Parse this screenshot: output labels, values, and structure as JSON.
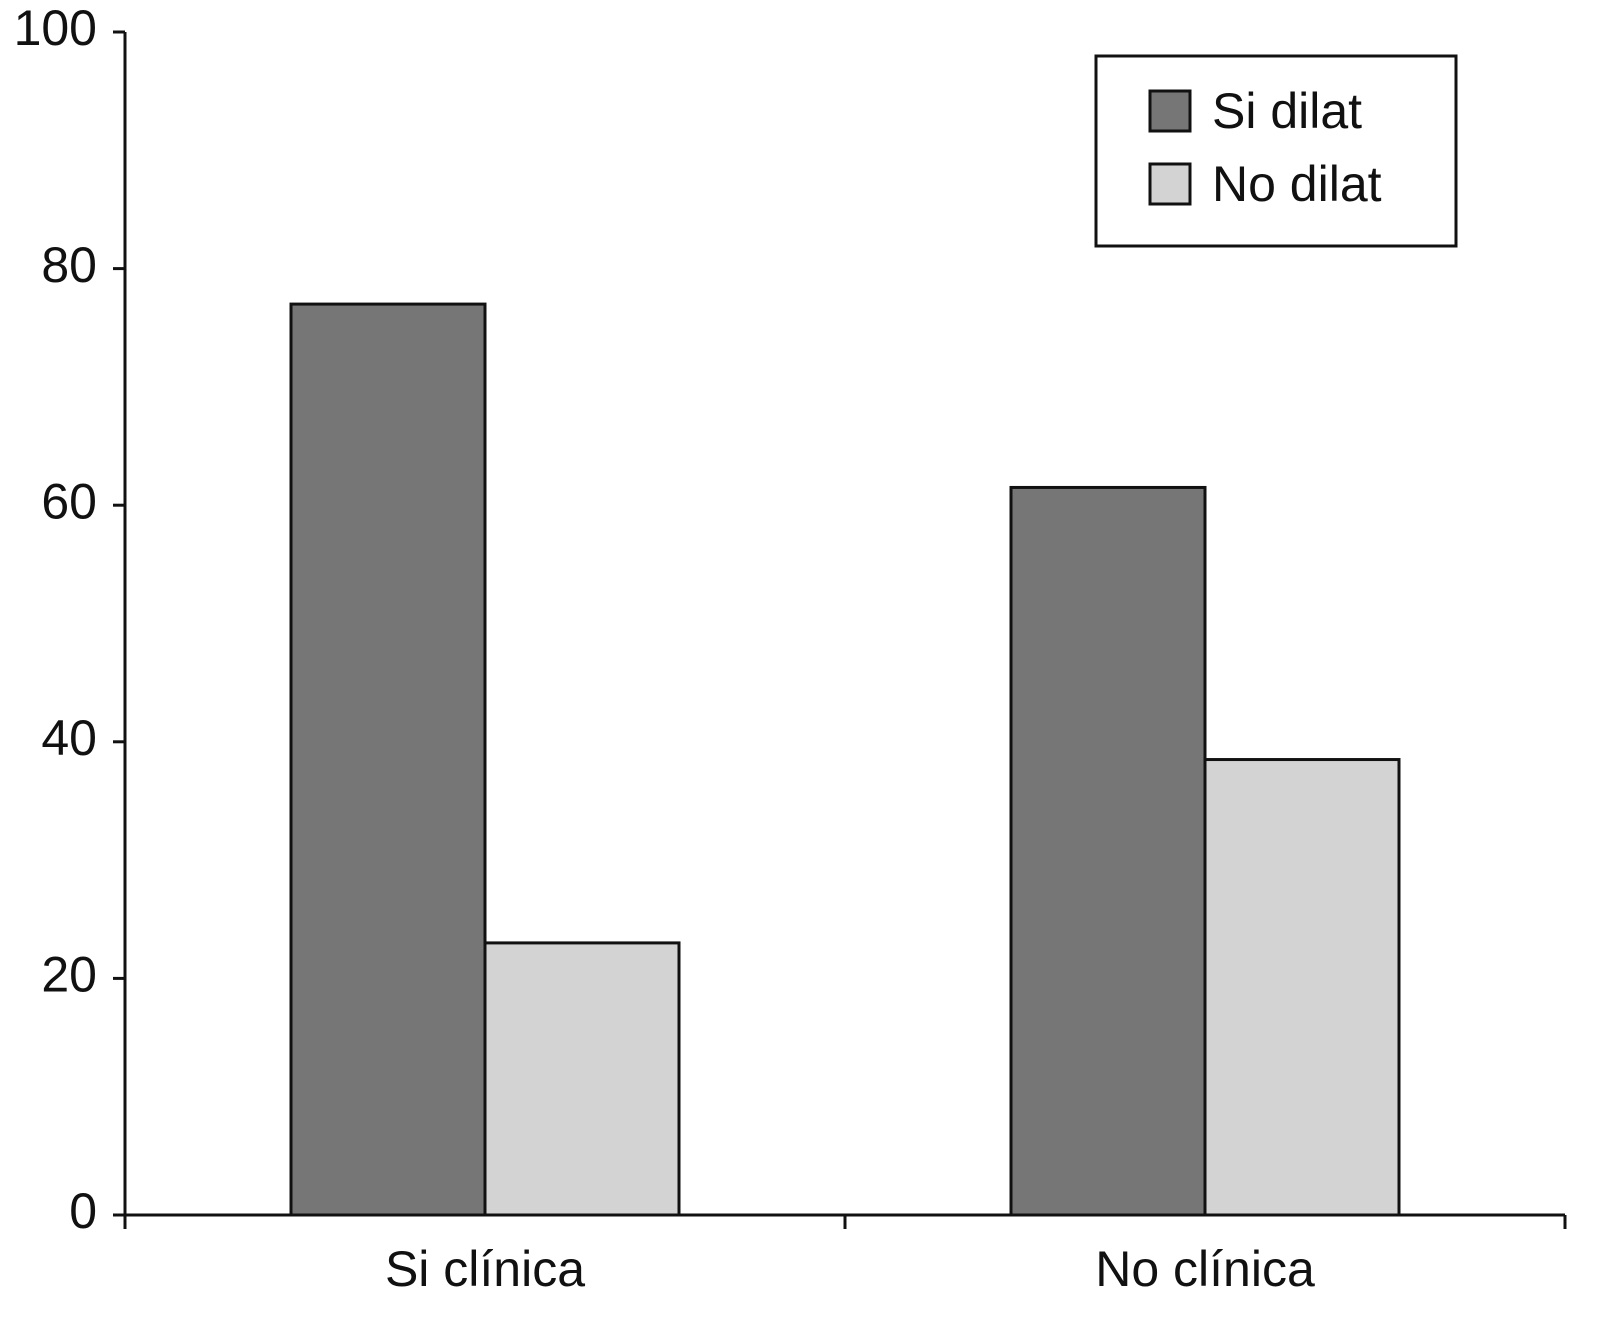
{
  "chart_data": {
    "type": "bar",
    "categories": [
      "Si clínica",
      "No clínica"
    ],
    "series": [
      {
        "name": "Si dilat",
        "color": "#767676",
        "values": [
          77,
          61.5
        ]
      },
      {
        "name": "No dilat",
        "color": "#d3d3d3",
        "values": [
          23,
          38.5
        ]
      }
    ],
    "ylim": [
      0,
      100
    ],
    "yticks": [
      0,
      20,
      40,
      60,
      80,
      100
    ],
    "legend": "upper right",
    "grid": false
  }
}
